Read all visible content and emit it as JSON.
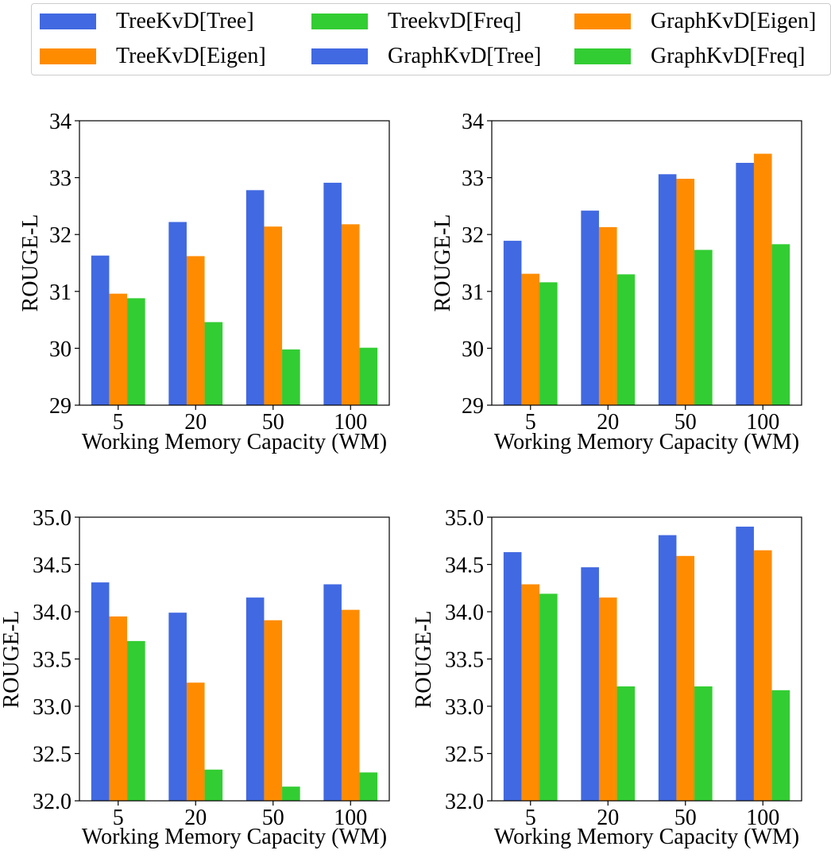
{
  "legend": {
    "items": [
      {
        "label": "TreeKvD[Tree]",
        "color": "#4169e1"
      },
      {
        "label": "TreekvD[Freq]",
        "color": "#32cd32"
      },
      {
        "label": "GraphKvD[Eigen]",
        "color": "#ff8c00"
      },
      {
        "label": "TreeKvD[Eigen]",
        "color": "#ff8c00"
      },
      {
        "label": "GraphKvD[Tree]",
        "color": "#4169e1"
      },
      {
        "label": "GraphKvD[Freq]",
        "color": "#32cd32"
      }
    ]
  },
  "chart_data": [
    {
      "type": "bar",
      "categories": [
        "5",
        "20",
        "50",
        "100"
      ],
      "xlabel": "Working Memory Capacity (WM)",
      "ylabel": "ROUGE-L",
      "ylim": [
        29,
        34
      ],
      "yticks": [
        "29",
        "30",
        "31",
        "32",
        "33",
        "34"
      ],
      "series": [
        {
          "color": "#4169e1",
          "values": [
            31.63,
            32.22,
            32.78,
            32.91
          ]
        },
        {
          "color": "#ff8c00",
          "values": [
            30.96,
            31.62,
            32.14,
            32.18
          ]
        },
        {
          "color": "#32cd32",
          "values": [
            30.88,
            30.46,
            29.98,
            30.01
          ]
        }
      ]
    },
    {
      "type": "bar",
      "categories": [
        "5",
        "20",
        "50",
        "100"
      ],
      "xlabel": "Working Memory Capacity (WM)",
      "ylabel": "ROUGE-L",
      "ylim": [
        29,
        34
      ],
      "yticks": [
        "29",
        "30",
        "31",
        "32",
        "33",
        "34"
      ],
      "series": [
        {
          "color": "#4169e1",
          "values": [
            31.89,
            32.42,
            33.06,
            33.26
          ]
        },
        {
          "color": "#ff8c00",
          "values": [
            31.31,
            32.13,
            32.98,
            33.42
          ]
        },
        {
          "color": "#32cd32",
          "values": [
            31.16,
            31.3,
            31.73,
            31.83
          ]
        }
      ]
    },
    {
      "type": "bar",
      "categories": [
        "5",
        "20",
        "50",
        "100"
      ],
      "xlabel": "Working Memory Capacity (WM)",
      "ylabel": "ROUGE-L",
      "ylim": [
        32.0,
        35.0
      ],
      "yticks": [
        "32.0",
        "32.5",
        "33.0",
        "33.5",
        "34.0",
        "34.5",
        "35.0"
      ],
      "series": [
        {
          "color": "#4169e1",
          "values": [
            34.31,
            33.99,
            34.15,
            34.29
          ]
        },
        {
          "color": "#ff8c00",
          "values": [
            33.95,
            33.25,
            33.91,
            34.02
          ]
        },
        {
          "color": "#32cd32",
          "values": [
            33.69,
            32.33,
            32.15,
            32.3
          ]
        }
      ]
    },
    {
      "type": "bar",
      "categories": [
        "5",
        "20",
        "50",
        "100"
      ],
      "xlabel": "Working Memory Capacity (WM)",
      "ylabel": "ROUGE-L",
      "ylim": [
        32.0,
        35.0
      ],
      "yticks": [
        "32.0",
        "32.5",
        "33.0",
        "33.5",
        "34.0",
        "34.5",
        "35.0"
      ],
      "series": [
        {
          "color": "#4169e1",
          "values": [
            34.63,
            34.47,
            34.81,
            34.9
          ]
        },
        {
          "color": "#ff8c00",
          "values": [
            34.29,
            34.15,
            34.59,
            34.65
          ]
        },
        {
          "color": "#32cd32",
          "values": [
            34.19,
            33.21,
            33.21,
            33.17
          ]
        }
      ]
    }
  ]
}
